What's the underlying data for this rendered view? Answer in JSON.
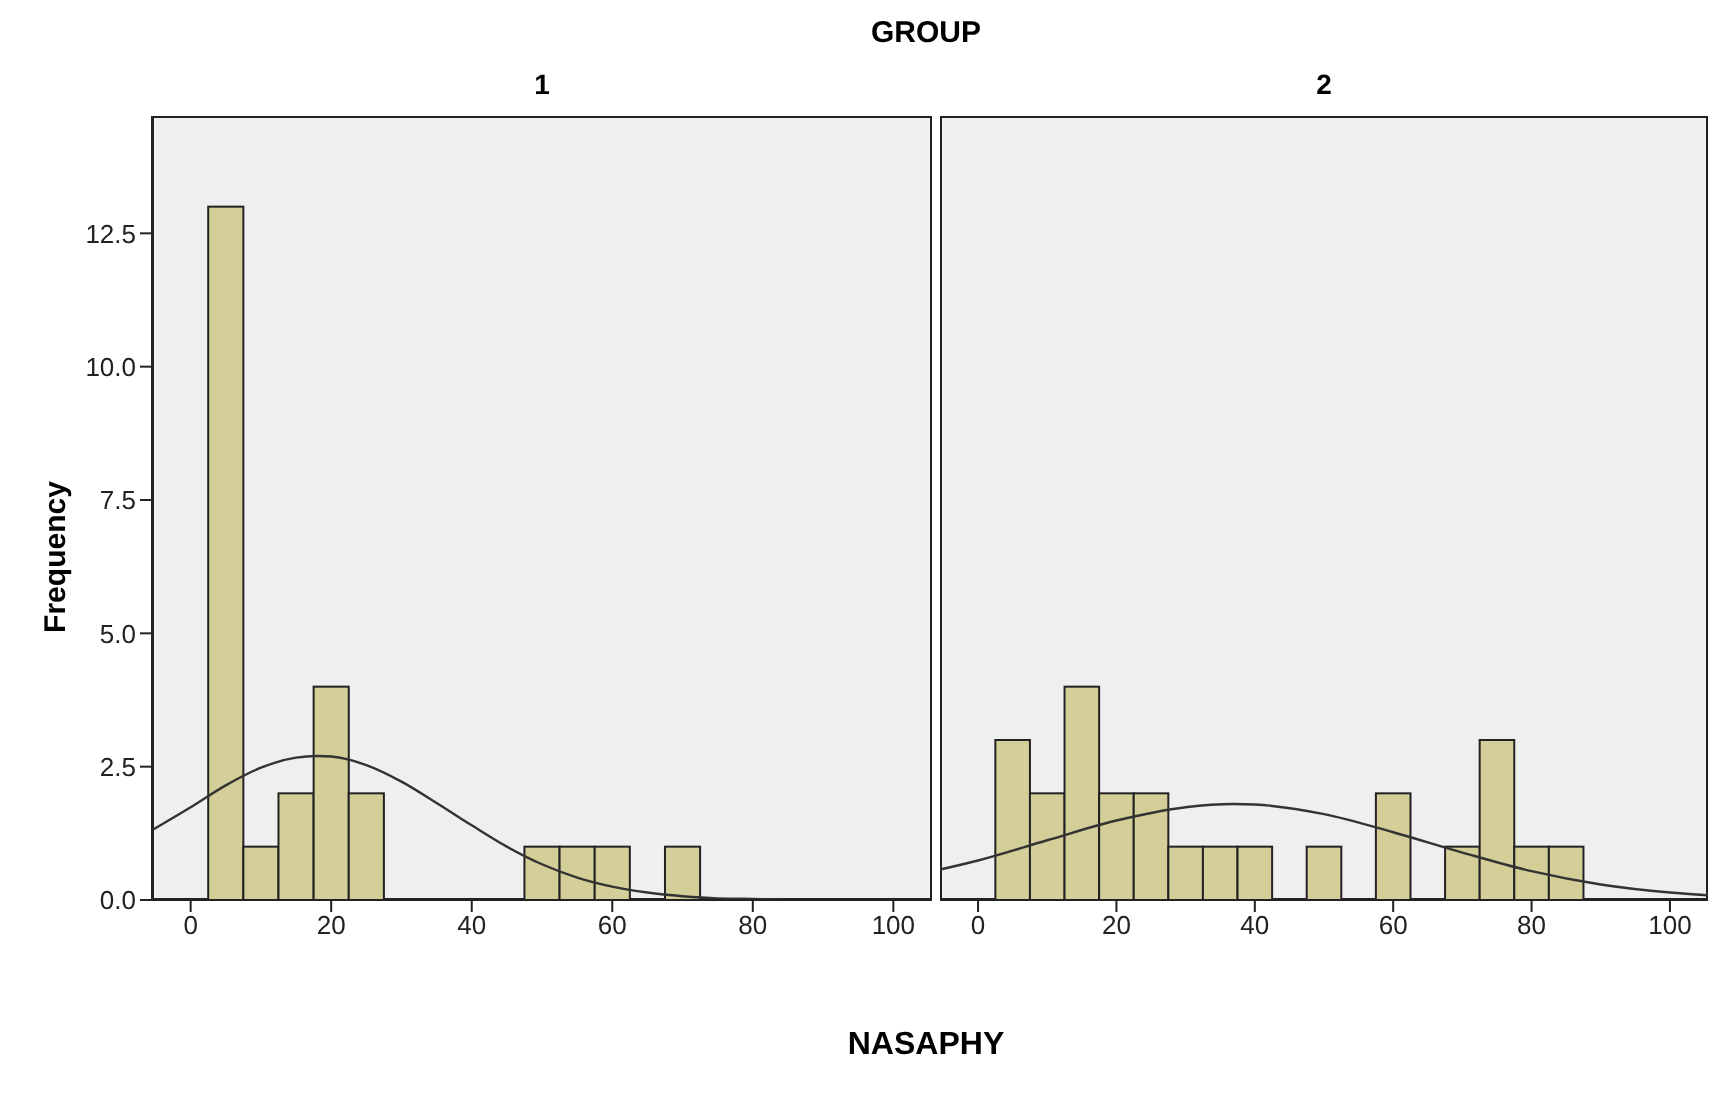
{
  "chart_data": [
    {
      "type": "histogram",
      "title": "1",
      "annotations": [
        "GROUP"
      ],
      "xlabel": "NASAPHY",
      "ylabel": "Frequency",
      "bins": [
        2.5,
        7.5,
        12.5,
        17.5,
        22.5,
        27.5,
        32.5,
        37.5,
        42.5,
        47.5,
        52.5,
        57.5,
        62.5,
        67.5,
        72.5
      ],
      "values": [
        13,
        1,
        2,
        4,
        2,
        0,
        0,
        0,
        0,
        1,
        1,
        1,
        0,
        1
      ],
      "color": "#d4cf98",
      "xlim": [
        -5.5,
        105.5
      ],
      "xticks": [
        0,
        20,
        40,
        60,
        80,
        100
      ],
      "ylim": [
        0,
        14.7
      ],
      "yticks": [
        {
          "value": 0,
          "label": "0.0"
        },
        {
          "value": 2.5,
          "label": "2.5"
        },
        {
          "value": 5,
          "label": "5.0"
        },
        {
          "value": 7.5,
          "label": "7.5"
        },
        {
          "value": 10,
          "label": "10.0"
        },
        {
          "value": 12.5,
          "label": "12.5"
        }
      ],
      "grid": false,
      "legend": false,
      "series": [
        {
          "type": "line",
          "color": "#333333",
          "x": [
            -5.5,
            0,
            5,
            10,
            15,
            18,
            20,
            25,
            30,
            35,
            40,
            45,
            50,
            55,
            60,
            65,
            70,
            75,
            80,
            90,
            105.5
          ],
          "values": [
            1.31,
            1.74,
            2.15,
            2.48,
            2.67,
            2.7,
            2.69,
            2.53,
            2.22,
            1.82,
            1.4,
            1.0,
            0.67,
            0.42,
            0.25,
            0.14,
            0.07,
            0.03,
            0.02,
            0.0,
            0.0
          ]
        }
      ]
    },
    {
      "type": "histogram",
      "title": "2",
      "bins": [
        2.5,
        7.5,
        12.5,
        17.5,
        22.5,
        27.5,
        32.5,
        37.5,
        42.5,
        47.5,
        52.5,
        57.5,
        62.5,
        67.5,
        72.5,
        77.5,
        82.5,
        87.5
      ],
      "values": [
        3,
        2,
        4,
        2,
        2,
        1,
        1,
        1,
        0,
        1,
        0,
        2,
        0,
        1,
        3,
        1,
        1
      ],
      "color": "#d4cf98",
      "xlim": [
        -5.5,
        105.5
      ],
      "xticks": [
        0,
        20,
        40,
        60,
        80,
        100
      ],
      "ylim": [
        0,
        14.7
      ],
      "tick_labels": "x",
      "grid": false,
      "legend": false,
      "series": [
        {
          "type": "line",
          "color": "#333333",
          "x": [
            -5.5,
            0,
            10,
            20,
            30,
            37,
            40,
            50,
            60,
            70,
            80,
            90,
            100,
            105.5
          ],
          "values": [
            0.57,
            0.74,
            1.12,
            1.49,
            1.74,
            1.8,
            1.79,
            1.61,
            1.27,
            0.89,
            0.54,
            0.29,
            0.14,
            0.09
          ]
        }
      ]
    }
  ]
}
